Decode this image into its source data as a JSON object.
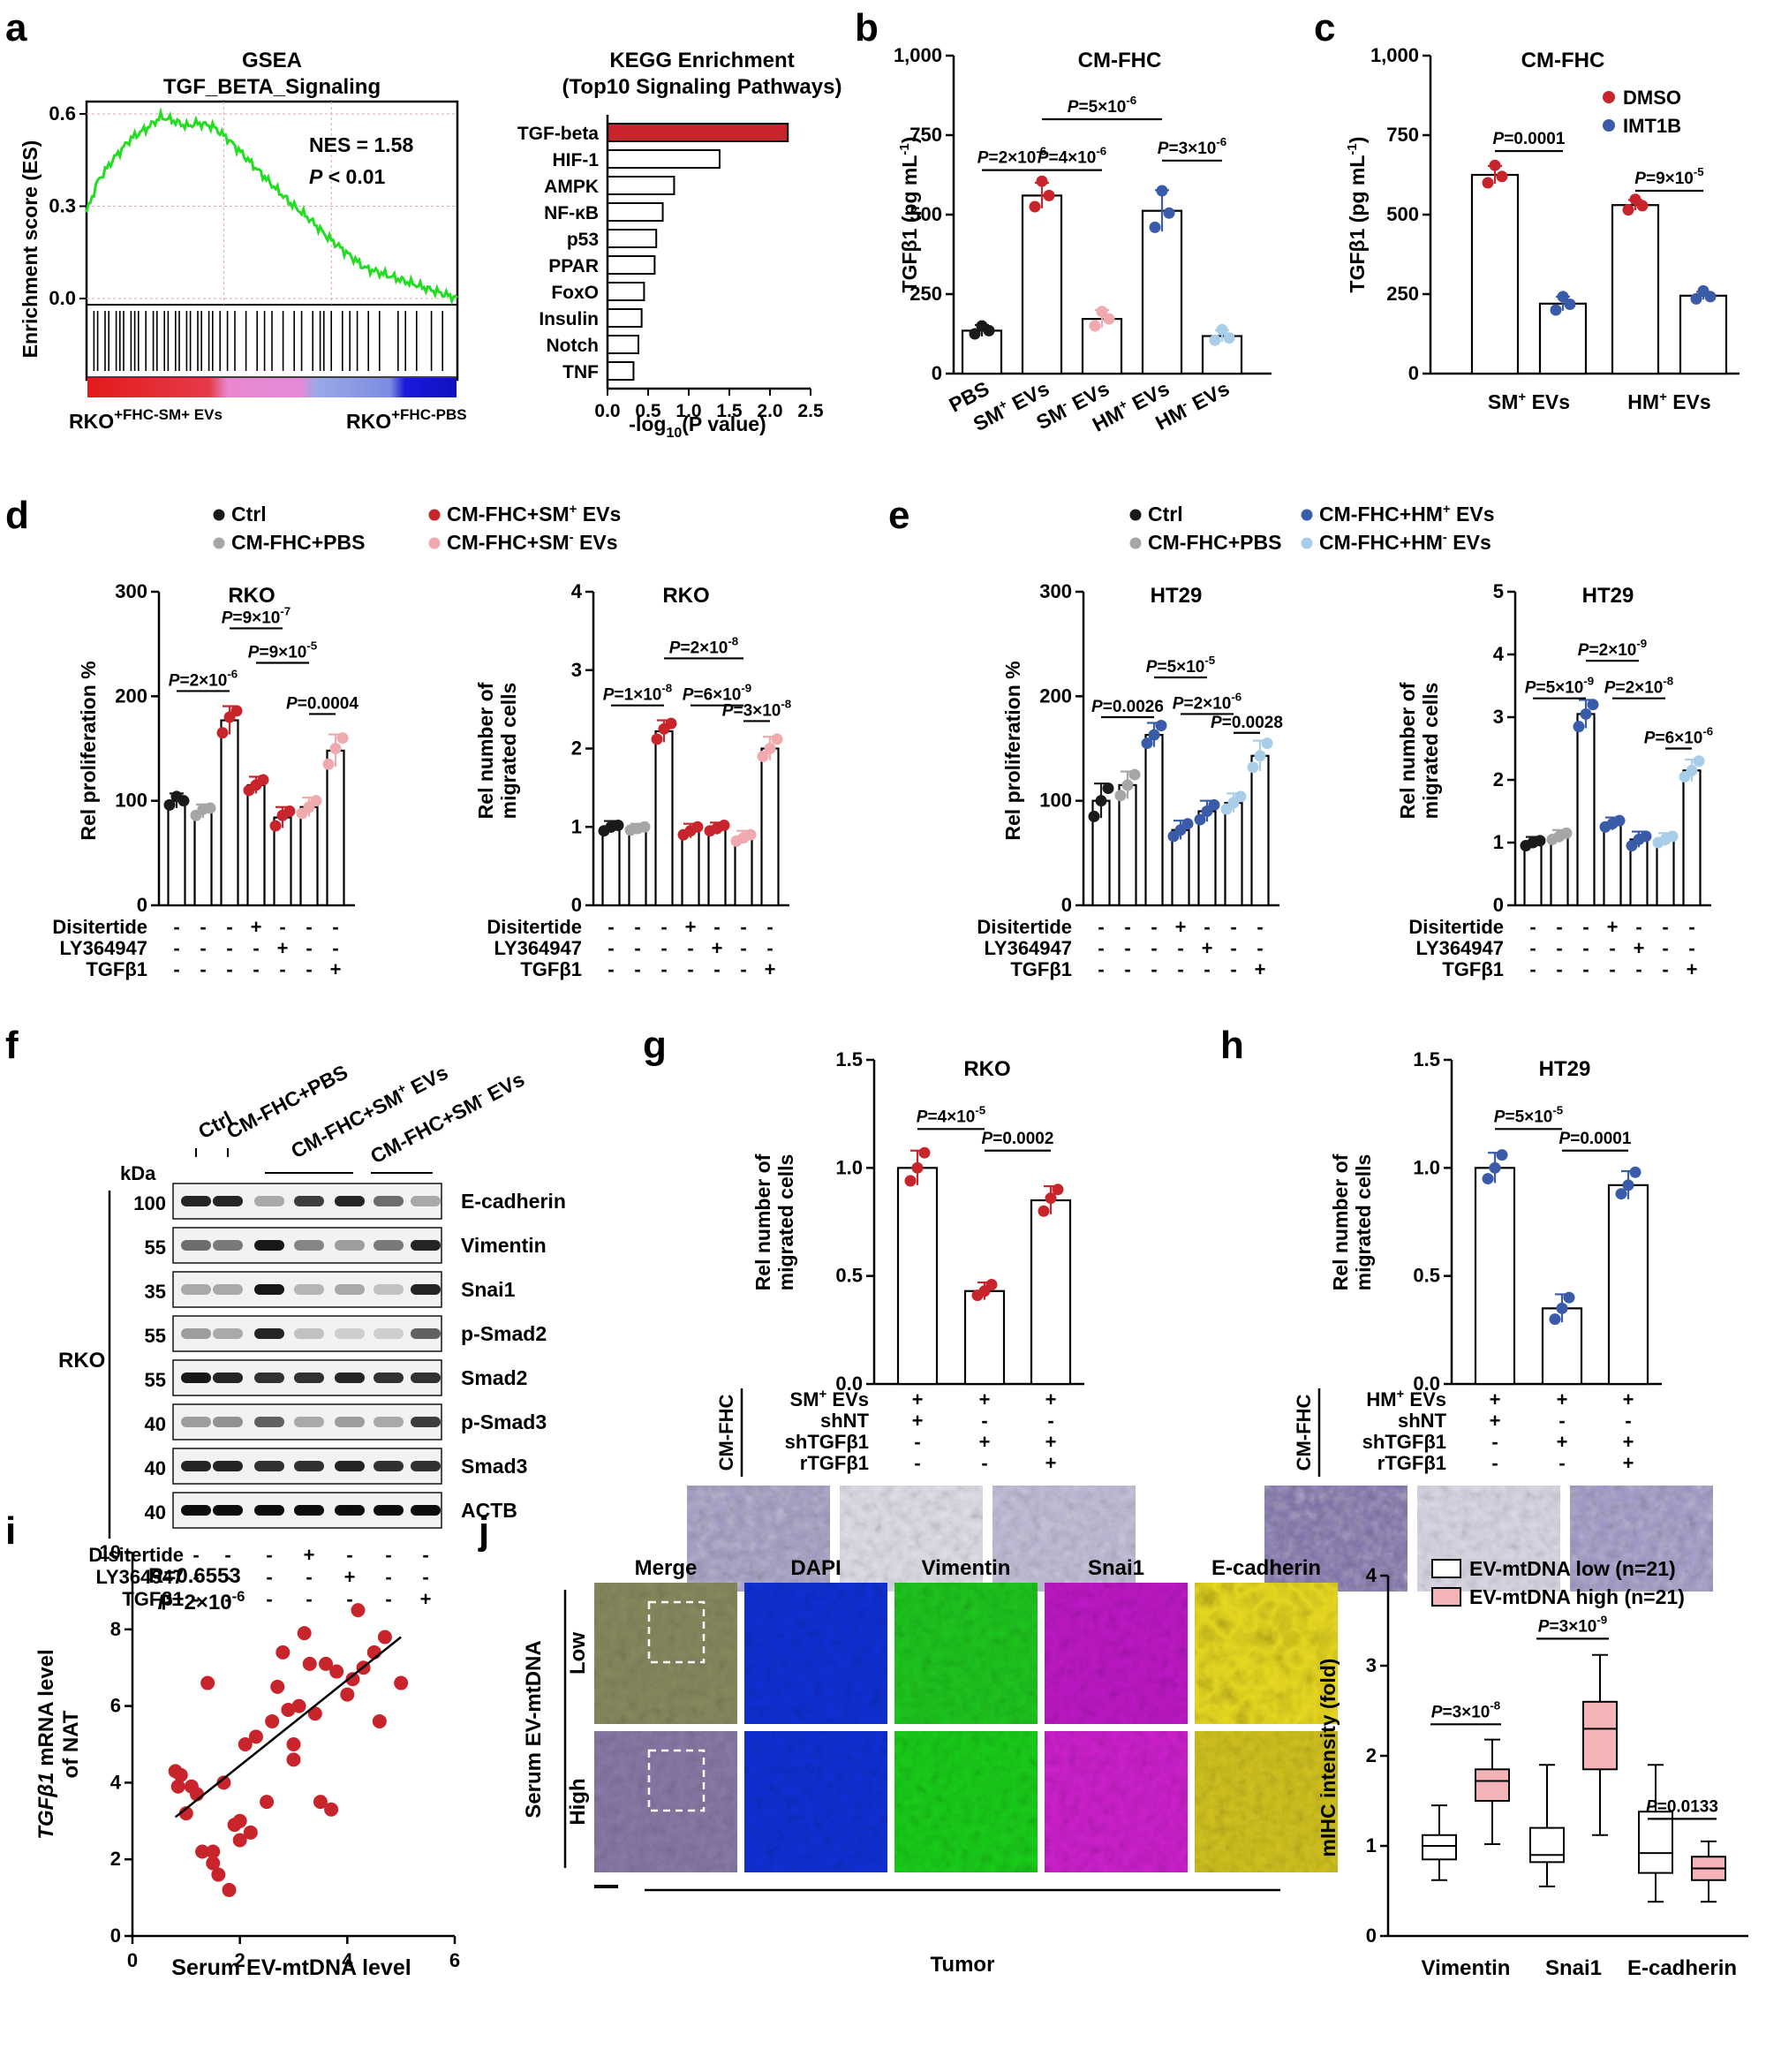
{
  "panel_letters": [
    "a",
    "b",
    "c",
    "d",
    "e",
    "f",
    "g",
    "h",
    "i",
    "j"
  ],
  "colors": {
    "red": "#c8242b",
    "pink": "#f0a9ad",
    "blue": "#3a5ca8",
    "lightblue": "#a8cde8",
    "gray": "#a6a6a6",
    "black": "#1a1a1a",
    "gsea_green": "#22dd22",
    "bar_red": "#c8242b",
    "box_pink": "#f4b4b7",
    "dapi": "#1230e0",
    "vimentin": "#19d619",
    "snai1": "#e020e0",
    "ecad": "#f0e020"
  },
  "chart_data": [
    {
      "id": "a-gsea",
      "type": "line",
      "title": "GSEA",
      "subtitle": "TGF_BETA_Signaling",
      "ylabel": "Enrichment score (ES)",
      "yticks": [
        "0.6",
        "0.3",
        "0.0"
      ],
      "ylim": [
        -0.02,
        0.64
      ],
      "x": [
        0,
        0.03,
        0.07,
        0.12,
        0.17,
        0.2,
        0.23,
        0.27,
        0.3,
        0.34,
        0.38,
        0.42,
        0.46,
        0.5,
        0.55,
        0.6,
        0.65,
        0.7,
        0.75,
        0.8,
        0.85,
        0.9,
        0.95,
        1.0
      ],
      "values": [
        0.28,
        0.38,
        0.45,
        0.52,
        0.56,
        0.59,
        0.58,
        0.56,
        0.57,
        0.56,
        0.52,
        0.47,
        0.42,
        0.37,
        0.31,
        0.26,
        0.2,
        0.15,
        0.1,
        0.08,
        0.06,
        0.04,
        0.02,
        0.0
      ],
      "annotations": [
        "NES = 1.58",
        "P",
        " < 0.01"
      ],
      "left_label": "RKO",
      "left_label_sup": "+FHC-SM+ EVs",
      "right_label": "RKO",
      "right_label_sup": "+FHC-PBS"
    },
    {
      "id": "a-kegg",
      "type": "bar",
      "orientation": "horizontal",
      "title": "KEGG Enrichment",
      "subtitle": "(Top10 Signaling Pathways)",
      "categories": [
        "TGF-beta",
        "HIF-1",
        "AMPK",
        "NF-κB",
        "p53",
        "PPAR",
        "FoxO",
        "Insulin",
        "Notch",
        "TNF"
      ],
      "values": [
        2.22,
        1.38,
        0.82,
        0.68,
        0.6,
        0.58,
        0.45,
        0.42,
        0.38,
        0.32
      ],
      "xticks": [
        "0.0",
        "0.5",
        "1.0",
        "1.5",
        "2.0",
        "2.5"
      ],
      "xlim": [
        0,
        2.5
      ],
      "xlabel_pre": "-log",
      "xlabel_sub": "10",
      "xlabel_post": "(P value)"
    },
    {
      "id": "b",
      "type": "bar",
      "title": "CM-FHC",
      "ylabel": "TGFβ1 (pg mL",
      "ylabel_sup": "-1",
      "ylabel_end": ")",
      "yticks": [
        "0",
        "250",
        "500",
        "750",
        "1,000"
      ],
      "ylim": [
        0,
        1000
      ],
      "categories": [
        "PBS",
        "SM+ EVs",
        "SM- EVs",
        "HM+ EVs",
        "HM- EVs"
      ],
      "values": [
        135,
        560,
        172,
        512,
        118
      ],
      "errors": [
        18,
        40,
        28,
        65,
        18
      ],
      "points": [
        [
          125,
          150,
          135
        ],
        [
          525,
          605,
          560
        ],
        [
          150,
          195,
          172
        ],
        [
          460,
          575,
          505
        ],
        [
          105,
          138,
          112
        ]
      ],
      "pvalues": [
        "P=2×10-6",
        "P=4×10-6",
        "P=3×10-6",
        "P=5×10-6"
      ]
    },
    {
      "id": "c",
      "type": "bar",
      "title": "CM-FHC",
      "ylabel": "TGFβ1 (pg mL",
      "ylabel_sup": "-1",
      "ylabel_end": ")",
      "yticks": [
        "0",
        "250",
        "500",
        "750",
        "1,000"
      ],
      "ylim": [
        0,
        1000
      ],
      "categories": [
        "SM+ EVs",
        "HM+ EVs"
      ],
      "series": [
        {
          "name": "DMSO",
          "values": [
            625,
            530
          ],
          "errors": [
            28,
            16
          ],
          "points": [
            [
              600,
              655,
              620
            ],
            [
              515,
              548,
              528
            ]
          ]
        },
        {
          "name": "IMT1B",
          "values": [
            220,
            245
          ],
          "errors": [
            22,
            12
          ],
          "points": [
            [
              200,
              242,
              218
            ],
            [
              235,
              260,
              242
            ]
          ]
        }
      ],
      "pvalues": [
        "P=0.0001",
        "P=9×10-5"
      ]
    },
    {
      "id": "d-prolif",
      "type": "bar",
      "title": "RKO",
      "ylabel": "Rel proliferation %",
      "yticks": [
        "0",
        "100",
        "200",
        "300"
      ],
      "ylim": [
        0,
        300
      ],
      "values": [
        100,
        90,
        177,
        115,
        84,
        94,
        148
      ],
      "points": [
        [
          96,
          104,
          100
        ],
        [
          86,
          92,
          93
        ],
        [
          165,
          180,
          186
        ],
        [
          110,
          115,
          120
        ],
        [
          76,
          86,
          90
        ],
        [
          88,
          94,
          100
        ],
        [
          135,
          150,
          160
        ]
      ],
      "pvalues": [
        "P=2×10-6",
        "P=9×10-7",
        "P=9×10-5",
        "P=0.0004"
      ]
    },
    {
      "id": "d-migr",
      "type": "bar",
      "title": "RKO",
      "ylabel": "Rel number of migrated cells",
      "yticks": [
        "0",
        "1",
        "2",
        "3",
        "4"
      ],
      "ylim": [
        0,
        4
      ],
      "values": [
        1.0,
        0.98,
        2.22,
        0.95,
        0.98,
        0.87,
        2.0
      ],
      "points": [
        [
          0.95,
          1.0,
          1.02
        ],
        [
          0.96,
          0.98,
          1.0
        ],
        [
          2.12,
          2.25,
          2.32
        ],
        [
          0.9,
          0.95,
          1.0
        ],
        [
          0.95,
          0.98,
          1.02
        ],
        [
          0.82,
          0.86,
          0.9
        ],
        [
          1.9,
          2.0,
          2.12
        ]
      ],
      "pvalues": [
        "P=1×10-8",
        "P=2×10-8",
        "P=6×10-9",
        "P=3×10-8"
      ]
    },
    {
      "id": "e-prolif",
      "type": "bar",
      "title": "HT29",
      "ylabel": "Rel proliferation %",
      "yticks": [
        "0",
        "100",
        "200",
        "300"
      ],
      "ylim": [
        0,
        300
      ],
      "values": [
        100,
        115,
        163,
        72,
        90,
        98,
        143
      ],
      "points": [
        [
          85,
          100,
          112
        ],
        [
          105,
          115,
          125
        ],
        [
          155,
          163,
          172
        ],
        [
          66,
          72,
          78
        ],
        [
          82,
          90,
          96
        ],
        [
          92,
          98,
          104
        ],
        [
          132,
          143,
          155
        ]
      ],
      "pvalues": [
        "P=0.0026",
        "P=5×10-5",
        "P=2×10-6",
        "P=0.0028"
      ]
    },
    {
      "id": "e-migr",
      "type": "bar",
      "title": "HT29",
      "ylabel": "Rel number of migrated cells",
      "yticks": [
        "0",
        "1",
        "2",
        "3",
        "4",
        "5"
      ],
      "ylim": [
        0,
        5
      ],
      "values": [
        1.0,
        1.1,
        3.05,
        1.3,
        1.05,
        1.05,
        2.15
      ],
      "points": [
        [
          0.95,
          1.0,
          1.03
        ],
        [
          1.05,
          1.1,
          1.15
        ],
        [
          2.85,
          3.05,
          3.2
        ],
        [
          1.25,
          1.3,
          1.35
        ],
        [
          0.95,
          1.05,
          1.1
        ],
        [
          1.0,
          1.05,
          1.1
        ],
        [
          2.05,
          2.15,
          2.3
        ]
      ],
      "pvalues": [
        "P=5×10-9",
        "P=2×10-9",
        "P=2×10-8",
        "P=6×10-6"
      ]
    },
    {
      "id": "g",
      "type": "bar",
      "title": "RKO",
      "ylabel": "Rel number of migrated cells",
      "yticks": [
        "0.0",
        "0.5",
        "1.0",
        "1.5"
      ],
      "ylim": [
        0,
        1.5
      ],
      "values": [
        1.0,
        0.43,
        0.85
      ],
      "points": [
        [
          0.94,
          1.0,
          1.07
        ],
        [
          0.41,
          0.43,
          0.46
        ],
        [
          0.8,
          0.86,
          0.9
        ]
      ],
      "pvalues": [
        "P=4×10-5",
        "P=0.0002"
      ]
    },
    {
      "id": "h",
      "type": "bar",
      "title": "HT29",
      "ylabel": "Rel number of migrated cells",
      "yticks": [
        "0.0",
        "0.5",
        "1.0",
        "1.5"
      ],
      "ylim": [
        0,
        1.5
      ],
      "values": [
        1.0,
        0.35,
        0.92
      ],
      "points": [
        [
          0.95,
          1.0,
          1.06
        ],
        [
          0.3,
          0.35,
          0.4
        ],
        [
          0.88,
          0.92,
          0.98
        ]
      ],
      "pvalues": [
        "P=5×10-5",
        "P=0.0001"
      ]
    },
    {
      "id": "i",
      "type": "scatter",
      "xlabel": "Serum EV-mtDNA level",
      "ylabel_italic": "TGFβ1",
      "ylabel_rest": " mRNA level",
      "ylabel2": "of NAT",
      "xticks": [
        "0",
        "2",
        "4",
        "6"
      ],
      "yticks": [
        "0",
        "2",
        "4",
        "6",
        "8",
        "10"
      ],
      "xlim": [
        0,
        6
      ],
      "ylim": [
        0,
        10
      ],
      "annotations": [
        "R=0.6553",
        "P=2×10-6"
      ],
      "fit": {
        "x": [
          0.8,
          5.0
        ],
        "y": [
          3.1,
          7.8
        ]
      },
      "x": [
        0.8,
        0.85,
        1.0,
        1.1,
        1.3,
        1.4,
        1.5,
        1.6,
        1.8,
        1.9,
        2.0,
        2.0,
        2.1,
        2.3,
        2.5,
        2.6,
        2.7,
        2.8,
        2.9,
        3.0,
        3.1,
        3.2,
        3.3,
        3.4,
        3.5,
        3.6,
        3.7,
        3.8,
        4.0,
        4.1,
        4.2,
        4.3,
        4.5,
        4.6,
        4.7,
        5.0,
        1.5,
        2.2,
        3.0,
        0.9,
        1.2,
        1.7
      ],
      "y": [
        4.3,
        3.9,
        3.2,
        3.9,
        2.2,
        6.6,
        1.9,
        1.6,
        1.2,
        2.9,
        2.5,
        3.0,
        5.0,
        5.2,
        3.5,
        5.6,
        6.5,
        7.4,
        5.9,
        5.0,
        6.0,
        7.9,
        7.1,
        5.8,
        3.5,
        7.1,
        3.3,
        6.9,
        6.3,
        6.7,
        8.5,
        7.0,
        7.4,
        5.6,
        7.8,
        6.6,
        2.2,
        2.7,
        4.6,
        4.2,
        3.7,
        4.0
      ]
    },
    {
      "id": "j-box",
      "type": "box",
      "ylabel": "mIHC intensity (fold)",
      "yticks": [
        "0",
        "1",
        "2",
        "3",
        "4"
      ],
      "ylim": [
        0,
        4
      ],
      "categories": [
        "Vimentin",
        "Snai1",
        "E-cadherin"
      ],
      "series": [
        {
          "name": "EV-mtDNA low (n=21)",
          "boxes": [
            [
              0.62,
              0.85,
              1.0,
              1.12,
              1.45
            ],
            [
              0.55,
              0.82,
              0.9,
              1.2,
              1.9
            ],
            [
              0.38,
              0.7,
              0.92,
              1.38,
              1.9
            ]
          ]
        },
        {
          "name": "EV-mtDNA high (n=21)",
          "boxes": [
            [
              1.02,
              1.5,
              1.72,
              1.85,
              2.18
            ],
            [
              1.12,
              1.85,
              2.3,
              2.6,
              3.12
            ],
            [
              0.38,
              0.62,
              0.75,
              0.88,
              1.05
            ]
          ]
        }
      ],
      "pvalues": [
        "P=3×10-8",
        "P=3×10-9",
        "P=0.0133"
      ]
    }
  ],
  "treatment": {
    "rows": [
      "Disitertide",
      "LY364947",
      "TGFβ1"
    ],
    "signs": [
      [
        "-",
        "-",
        "-",
        "+",
        "-",
        "-",
        "-"
      ],
      [
        "-",
        "-",
        "-",
        "-",
        "+",
        "-",
        "-"
      ],
      [
        "-",
        "-",
        "-",
        "-",
        "-",
        "-",
        "+"
      ]
    ]
  },
  "legend_d": [
    "Ctrl",
    "CM-FHC+PBS",
    "CM-FHC+SM",
    "+",
    " EVs",
    "CM-FHC+SM",
    "-",
    " EVs"
  ],
  "legend_e": [
    "Ctrl",
    "CM-FHC+PBS",
    "CM-FHC+HM",
    "+",
    " EVs",
    "CM-FHC+HM",
    "-",
    " EVs"
  ],
  "g_table": {
    "side": "CM-FHC",
    "rows": [
      "SM+ EVs",
      "shNT",
      "shTGFβ1",
      "rTGFβ1"
    ],
    "signs": [
      [
        "+",
        "+",
        "+"
      ],
      [
        "+",
        "-",
        "-"
      ],
      [
        "-",
        "+",
        "+"
      ],
      [
        "-",
        "-",
        "+"
      ]
    ]
  },
  "h_table": {
    "side": "CM-FHC",
    "rows": [
      "HM+ EVs",
      "shNT",
      "shTGFβ1",
      "rTGFβ1"
    ],
    "signs": [
      [
        "+",
        "+",
        "+"
      ],
      [
        "+",
        "-",
        "-"
      ],
      [
        "-",
        "+",
        "+"
      ],
      [
        "-",
        "-",
        "+"
      ]
    ]
  },
  "blot_f": {
    "lanes": [
      "Ctrl",
      "CM-FHC+PBS",
      "CM-FHC+SM+ EVs",
      "CM-FHC+SM- EVs"
    ],
    "kda_label": "kDa",
    "cell_line": "RKO",
    "bands": [
      "E-cadherin",
      "Vimentin",
      "Snai1",
      "p-Smad2",
      "Smad2",
      "p-Smad3",
      "Smad3",
      "ACTB"
    ],
    "kda": [
      "100",
      "55",
      "35",
      "55",
      "55",
      "40",
      "40",
      "40"
    ],
    "treat_rows": [
      "Disitertide",
      "LY364947",
      "TGFβ1"
    ],
    "signs": [
      [
        "-",
        "-",
        "-",
        "+",
        "-",
        "-",
        "-"
      ],
      [
        "-",
        "-",
        "-",
        "-",
        "+",
        "-",
        "-"
      ],
      [
        "-",
        "-",
        "-",
        "-",
        "-",
        "-",
        "+"
      ]
    ]
  },
  "mihc_j": {
    "columns": [
      "Merge",
      "DAPI",
      "Vimentin",
      "Snai1",
      "E-cadherin"
    ],
    "rows": [
      "Low",
      "High"
    ],
    "row_group": "Serum EV-mtDNA",
    "bottom": "Tumor"
  }
}
